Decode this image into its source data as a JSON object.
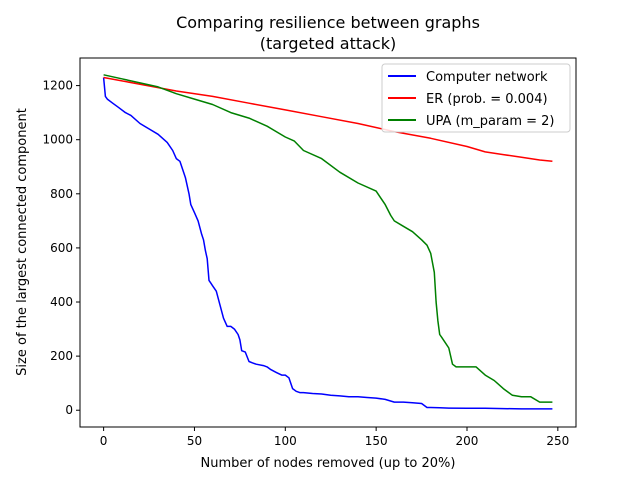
{
  "chart_data": {
    "type": "line",
    "title": "Comparing resilience between graphs",
    "subtitle": "(targeted attack)",
    "xlabel": "Number of nodes removed (up to 20%)",
    "ylabel": "Size of the largest connected component",
    "xlim": [
      -13,
      260
    ],
    "ylim": [
      -62,
      1302
    ],
    "xticks": [
      0,
      50,
      100,
      150,
      200,
      250
    ],
    "yticks": [
      0,
      200,
      400,
      600,
      800,
      1000,
      1200
    ],
    "grid": false,
    "legend": "top-right",
    "series": [
      {
        "name": "Computer network",
        "color": "#0000ff",
        "x": [
          0,
          1,
          2,
          5,
          8,
          12,
          15,
          20,
          25,
          30,
          35,
          38,
          40,
          42,
          44,
          45,
          46,
          47,
          48,
          50,
          52,
          54,
          55,
          56,
          57,
          58,
          59,
          60,
          62,
          64,
          66,
          68,
          70,
          72,
          74,
          75,
          76,
          78,
          80,
          82,
          84,
          88,
          90,
          92,
          95,
          98,
          100,
          102,
          104,
          106,
          108,
          110,
          115,
          120,
          125,
          130,
          135,
          140,
          145,
          150,
          155,
          160,
          165,
          170,
          175,
          178,
          180,
          185,
          190,
          200,
          210,
          220,
          230,
          240,
          247
        ],
        "y": [
          1230,
          1160,
          1150,
          1135,
          1120,
          1100,
          1090,
          1060,
          1040,
          1020,
          990,
          960,
          930,
          920,
          880,
          860,
          830,
          800,
          760,
          730,
          700,
          650,
          630,
          590,
          560,
          480,
          470,
          460,
          440,
          390,
          340,
          310,
          310,
          300,
          280,
          260,
          220,
          215,
          180,
          175,
          170,
          165,
          160,
          150,
          140,
          130,
          130,
          120,
          80,
          70,
          65,
          65,
          62,
          60,
          55,
          53,
          50,
          50,
          47,
          45,
          40,
          30,
          30,
          28,
          25,
          10,
          10,
          9,
          8,
          7,
          7,
          6,
          5,
          5,
          5
        ]
      },
      {
        "name": "ER (prob. = 0.004)",
        "color": "#ff0000",
        "x": [
          0,
          20,
          40,
          60,
          80,
          100,
          120,
          140,
          160,
          180,
          200,
          210,
          220,
          230,
          240,
          247
        ],
        "y": [
          1230,
          1205,
          1180,
          1160,
          1135,
          1110,
          1085,
          1060,
          1030,
          1005,
          975,
          955,
          945,
          935,
          925,
          920
        ]
      },
      {
        "name": "UPA (m_param = 2)",
        "color": "#008000",
        "x": [
          0,
          10,
          20,
          30,
          40,
          50,
          60,
          70,
          80,
          90,
          100,
          105,
          110,
          120,
          130,
          140,
          150,
          155,
          158,
          160,
          165,
          170,
          175,
          178,
          180,
          182,
          183,
          184,
          185,
          186,
          188,
          190,
          192,
          194,
          196,
          198,
          200,
          205,
          210,
          215,
          220,
          225,
          230,
          235,
          240,
          247
        ],
        "y": [
          1240,
          1225,
          1210,
          1195,
          1170,
          1150,
          1130,
          1100,
          1080,
          1050,
          1010,
          995,
          960,
          930,
          880,
          840,
          810,
          760,
          720,
          700,
          680,
          660,
          630,
          610,
          580,
          510,
          400,
          330,
          280,
          270,
          250,
          230,
          170,
          160,
          160,
          160,
          160,
          160,
          130,
          110,
          80,
          55,
          50,
          50,
          30,
          30
        ]
      }
    ]
  }
}
